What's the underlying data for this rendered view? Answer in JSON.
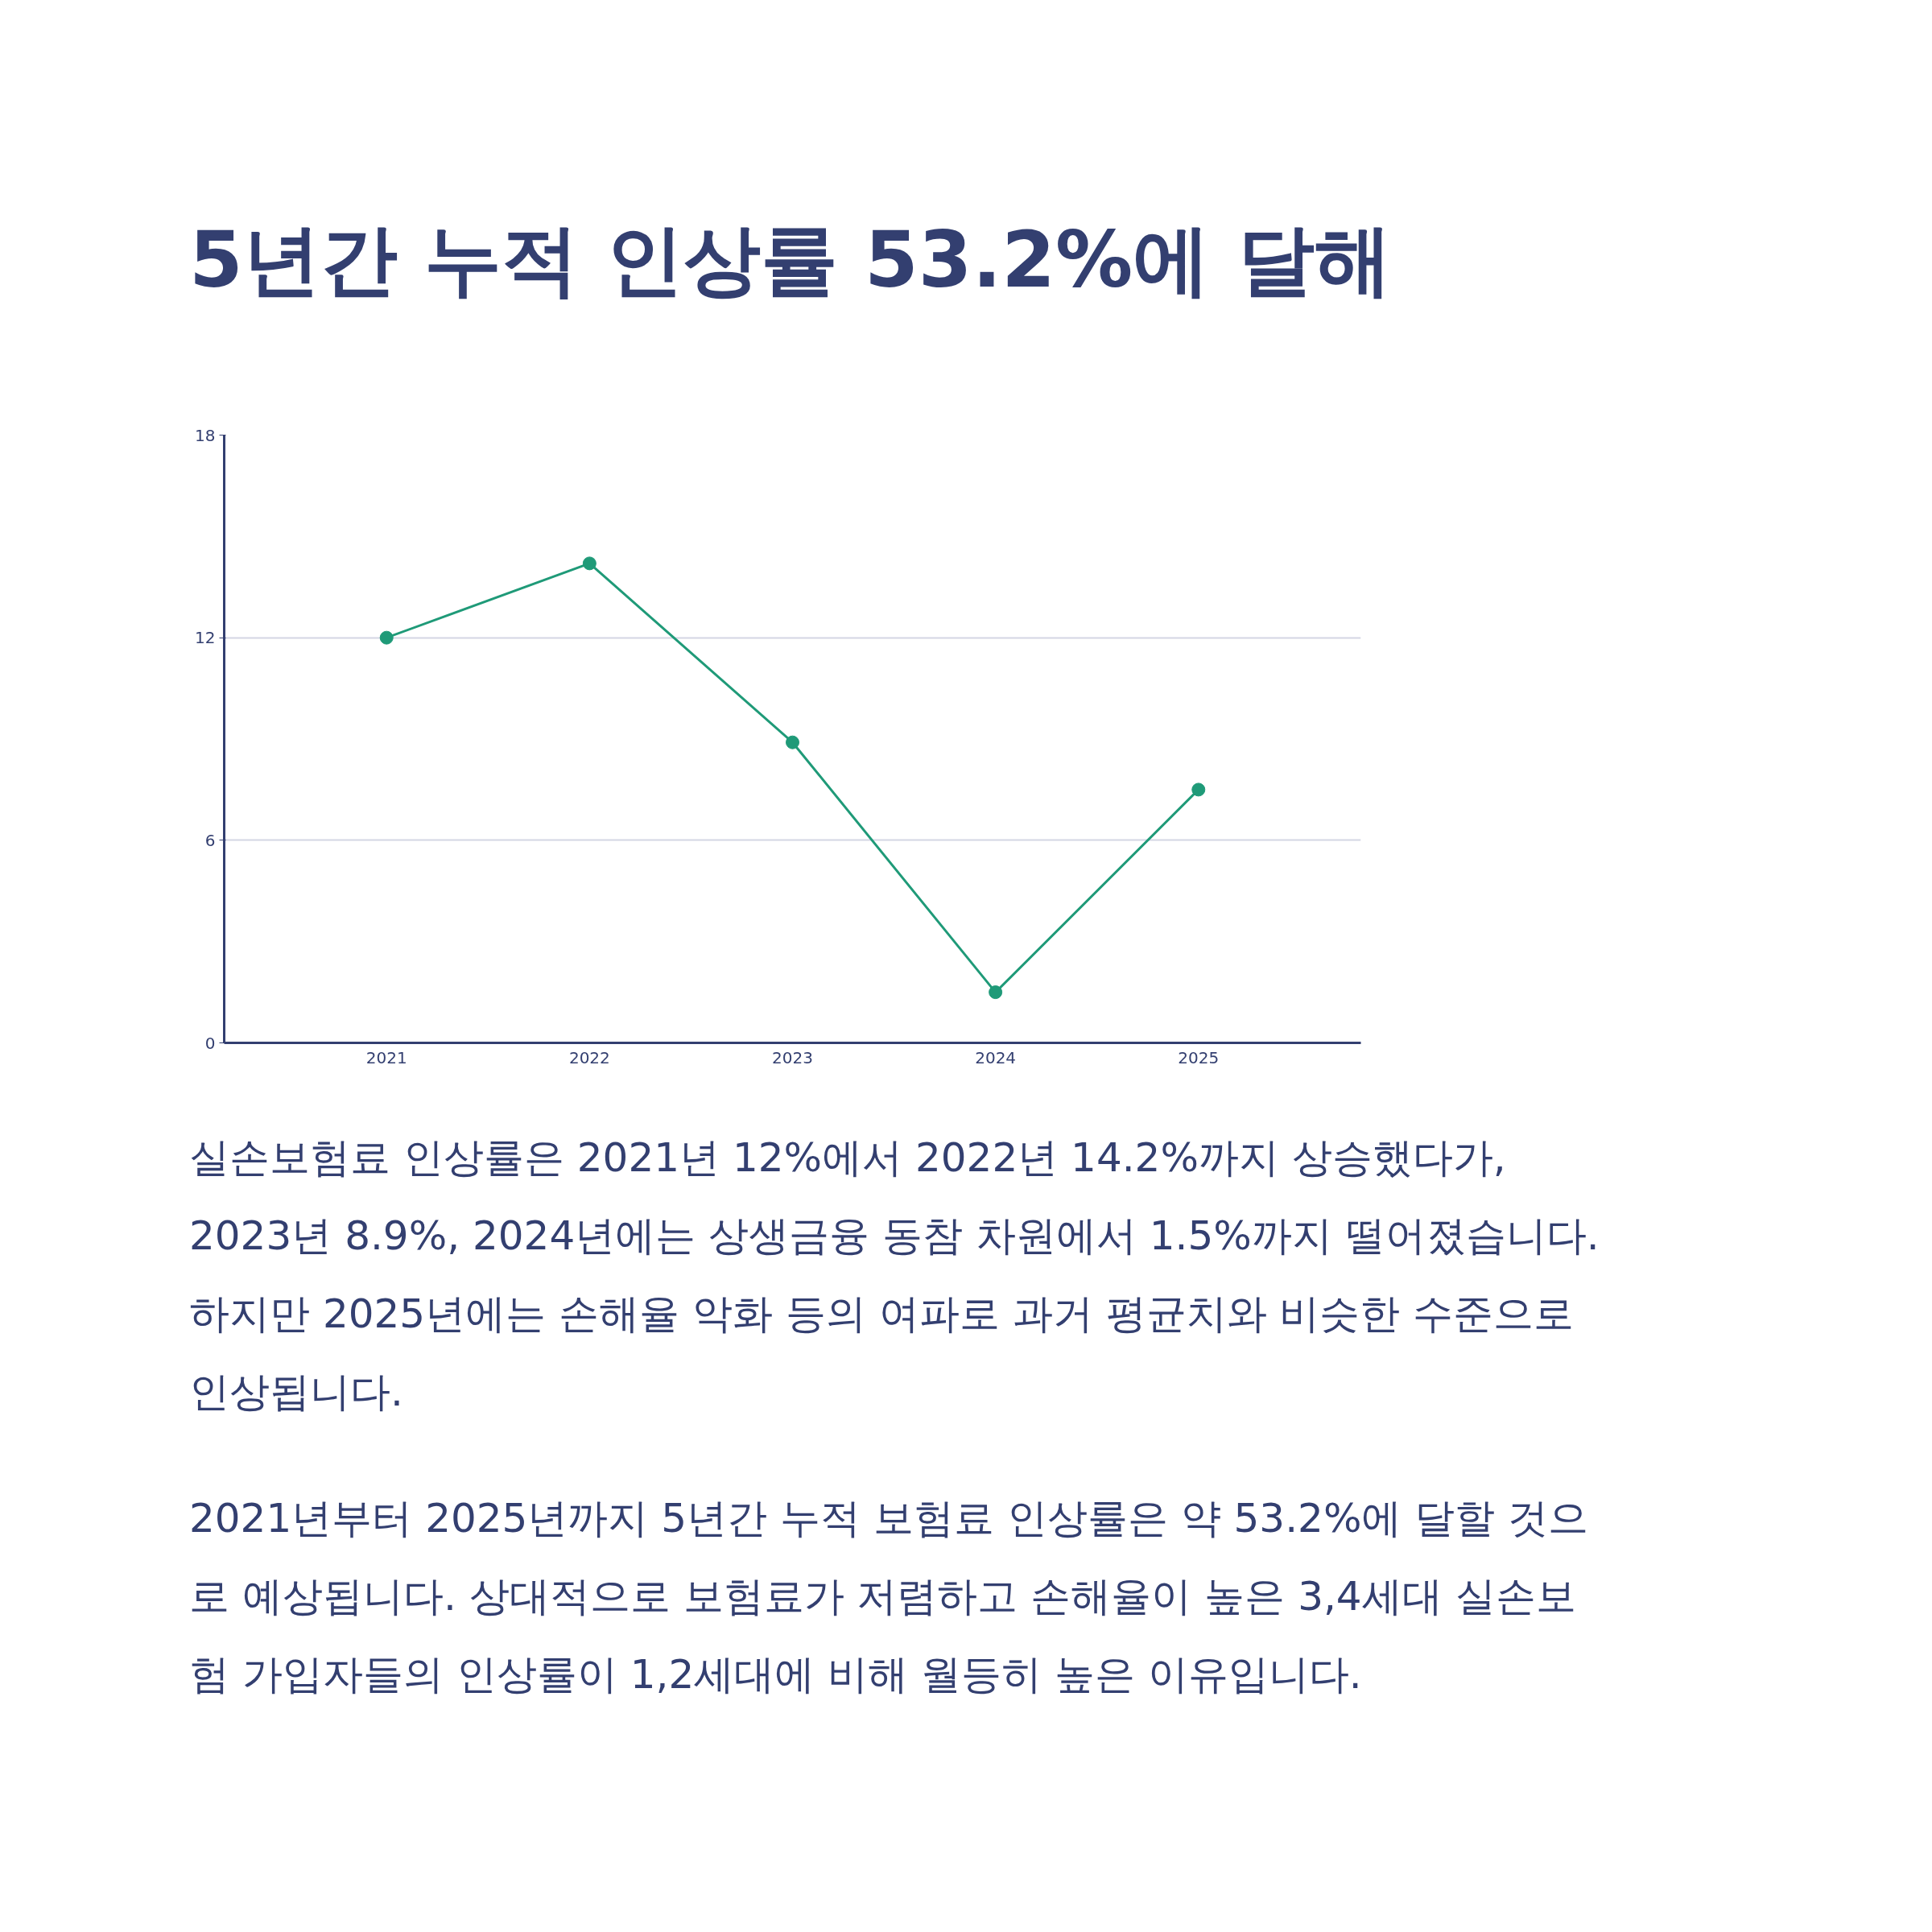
{
  "chart_data": {
    "type": "line",
    "title": "5년간 누적 인상률 53.2%에 달해",
    "x": [
      2021,
      2022,
      2023,
      2024,
      2025
    ],
    "series": [
      {
        "color": "#1f9a78",
        "values": [
          12,
          14.2,
          8.9,
          1.5,
          7.5
        ]
      }
    ],
    "xlim": [
      2020.2,
      2025.8
    ],
    "xticks": [
      2021,
      2022,
      2023,
      2024,
      2025
    ],
    "ylim": [
      0,
      18
    ],
    "yticks": [
      0,
      6,
      12,
      18
    ],
    "grid": "y",
    "marker": "circle",
    "line_style": "solid",
    "annotations": [
      "실손보험료 인상률은 2021년 12%에서 2022년 14.2%까지 상승했다가,\n2023년 8.9%, 2024년에는 상생금융 동참 차원에서 1.5%까지 떨어졌습니다.\n하지만 2025년에는 손해율 악화 등의 여파로 과거 평균치와 비슷한 수준으로\n인상됩니다.",
      "2021년부터 2025년까지 5년간 누적 보험료 인상률은 약 53.2%에 달할 것으\n로 예상됩니다. 상대적으로 보험료가 저렴하고 손해율이 높은 3,4세대 실손보\n험 가입자들의 인상률이 1,2세대에 비해 월등히 높은 이유입니다."
    ]
  }
}
